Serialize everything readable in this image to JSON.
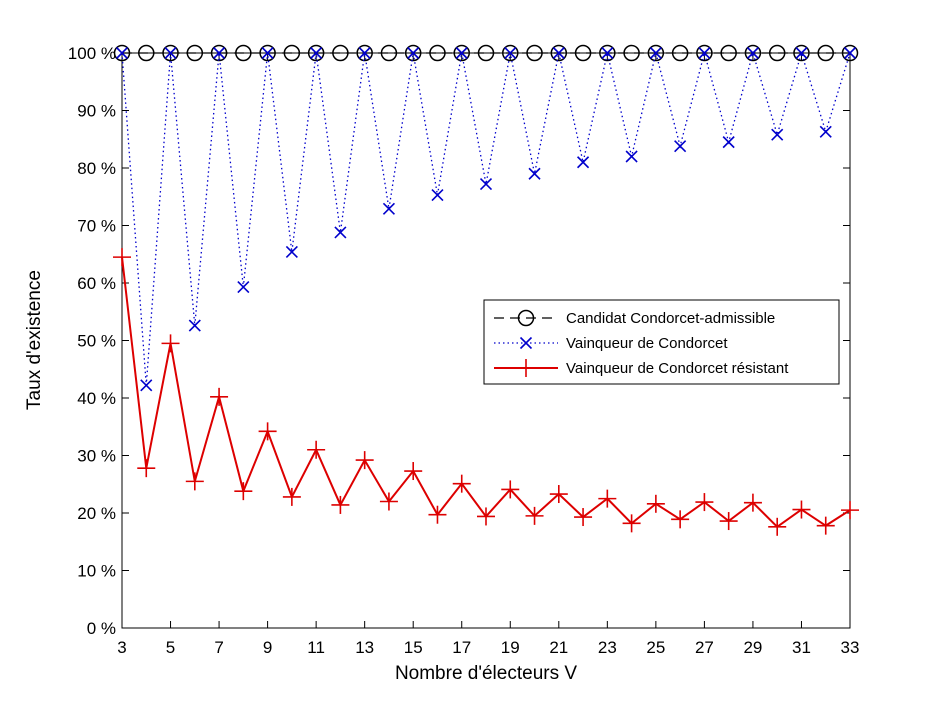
{
  "chart_data": {
    "type": "line",
    "xlabel": "Nombre d'électeurs V",
    "ylabel": "Taux d'existence",
    "xlim": [
      3,
      33
    ],
    "ylim": [
      0,
      100
    ],
    "x_ticks": [
      3,
      5,
      7,
      9,
      11,
      13,
      15,
      17,
      19,
      21,
      23,
      25,
      27,
      29,
      31,
      33
    ],
    "y_ticks": [
      0,
      10,
      20,
      30,
      40,
      50,
      60,
      70,
      80,
      90,
      100
    ],
    "y_tick_labels": [
      "0 %",
      "10 %",
      "20 %",
      "30 %",
      "40 %",
      "50 %",
      "60 %",
      "70 %",
      "80 %",
      "90 %",
      "100 %"
    ],
    "grid": false,
    "legend_position": "right-middle",
    "x": [
      3,
      4,
      5,
      6,
      7,
      8,
      9,
      10,
      11,
      12,
      13,
      14,
      15,
      16,
      17,
      18,
      19,
      20,
      21,
      22,
      23,
      24,
      25,
      26,
      27,
      28,
      29,
      30,
      31,
      32,
      33
    ],
    "series": [
      {
        "name": "Candidat Condorcet-admissible",
        "color": "#000000",
        "line_style": "dashed",
        "marker": "circle",
        "values": [
          100,
          100,
          100,
          100,
          100,
          100,
          100,
          100,
          100,
          100,
          100,
          100,
          100,
          100,
          100,
          100,
          100,
          100,
          100,
          100,
          100,
          100,
          100,
          100,
          100,
          100,
          100,
          100,
          100,
          100,
          100
        ]
      },
      {
        "name": "Vainqueur de Condorcet",
        "color": "#0000cc",
        "line_style": "dotted",
        "marker": "x",
        "values": [
          100,
          42.2,
          100,
          52.6,
          100,
          59.3,
          100,
          65.4,
          100,
          68.8,
          100,
          72.9,
          100,
          75.3,
          100,
          77.2,
          100,
          79.0,
          100,
          81.0,
          100,
          82.0,
          100,
          83.8,
          100,
          84.5,
          100,
          85.8,
          100,
          86.3,
          100
        ]
      },
      {
        "name": "Vainqueur de Condorcet résistant",
        "color": "#dd0000",
        "line_style": "solid",
        "marker": "plus",
        "values": [
          64.5,
          27.8,
          49.5,
          25.5,
          40.2,
          23.8,
          34.2,
          22.8,
          31.0,
          21.4,
          29.2,
          22.0,
          27.3,
          19.7,
          25.1,
          19.4,
          24.1,
          19.5,
          23.3,
          19.3,
          22.5,
          18.2,
          21.6,
          18.9,
          21.9,
          18.6,
          21.8,
          17.6,
          20.6,
          17.8,
          20.5
        ]
      }
    ]
  }
}
